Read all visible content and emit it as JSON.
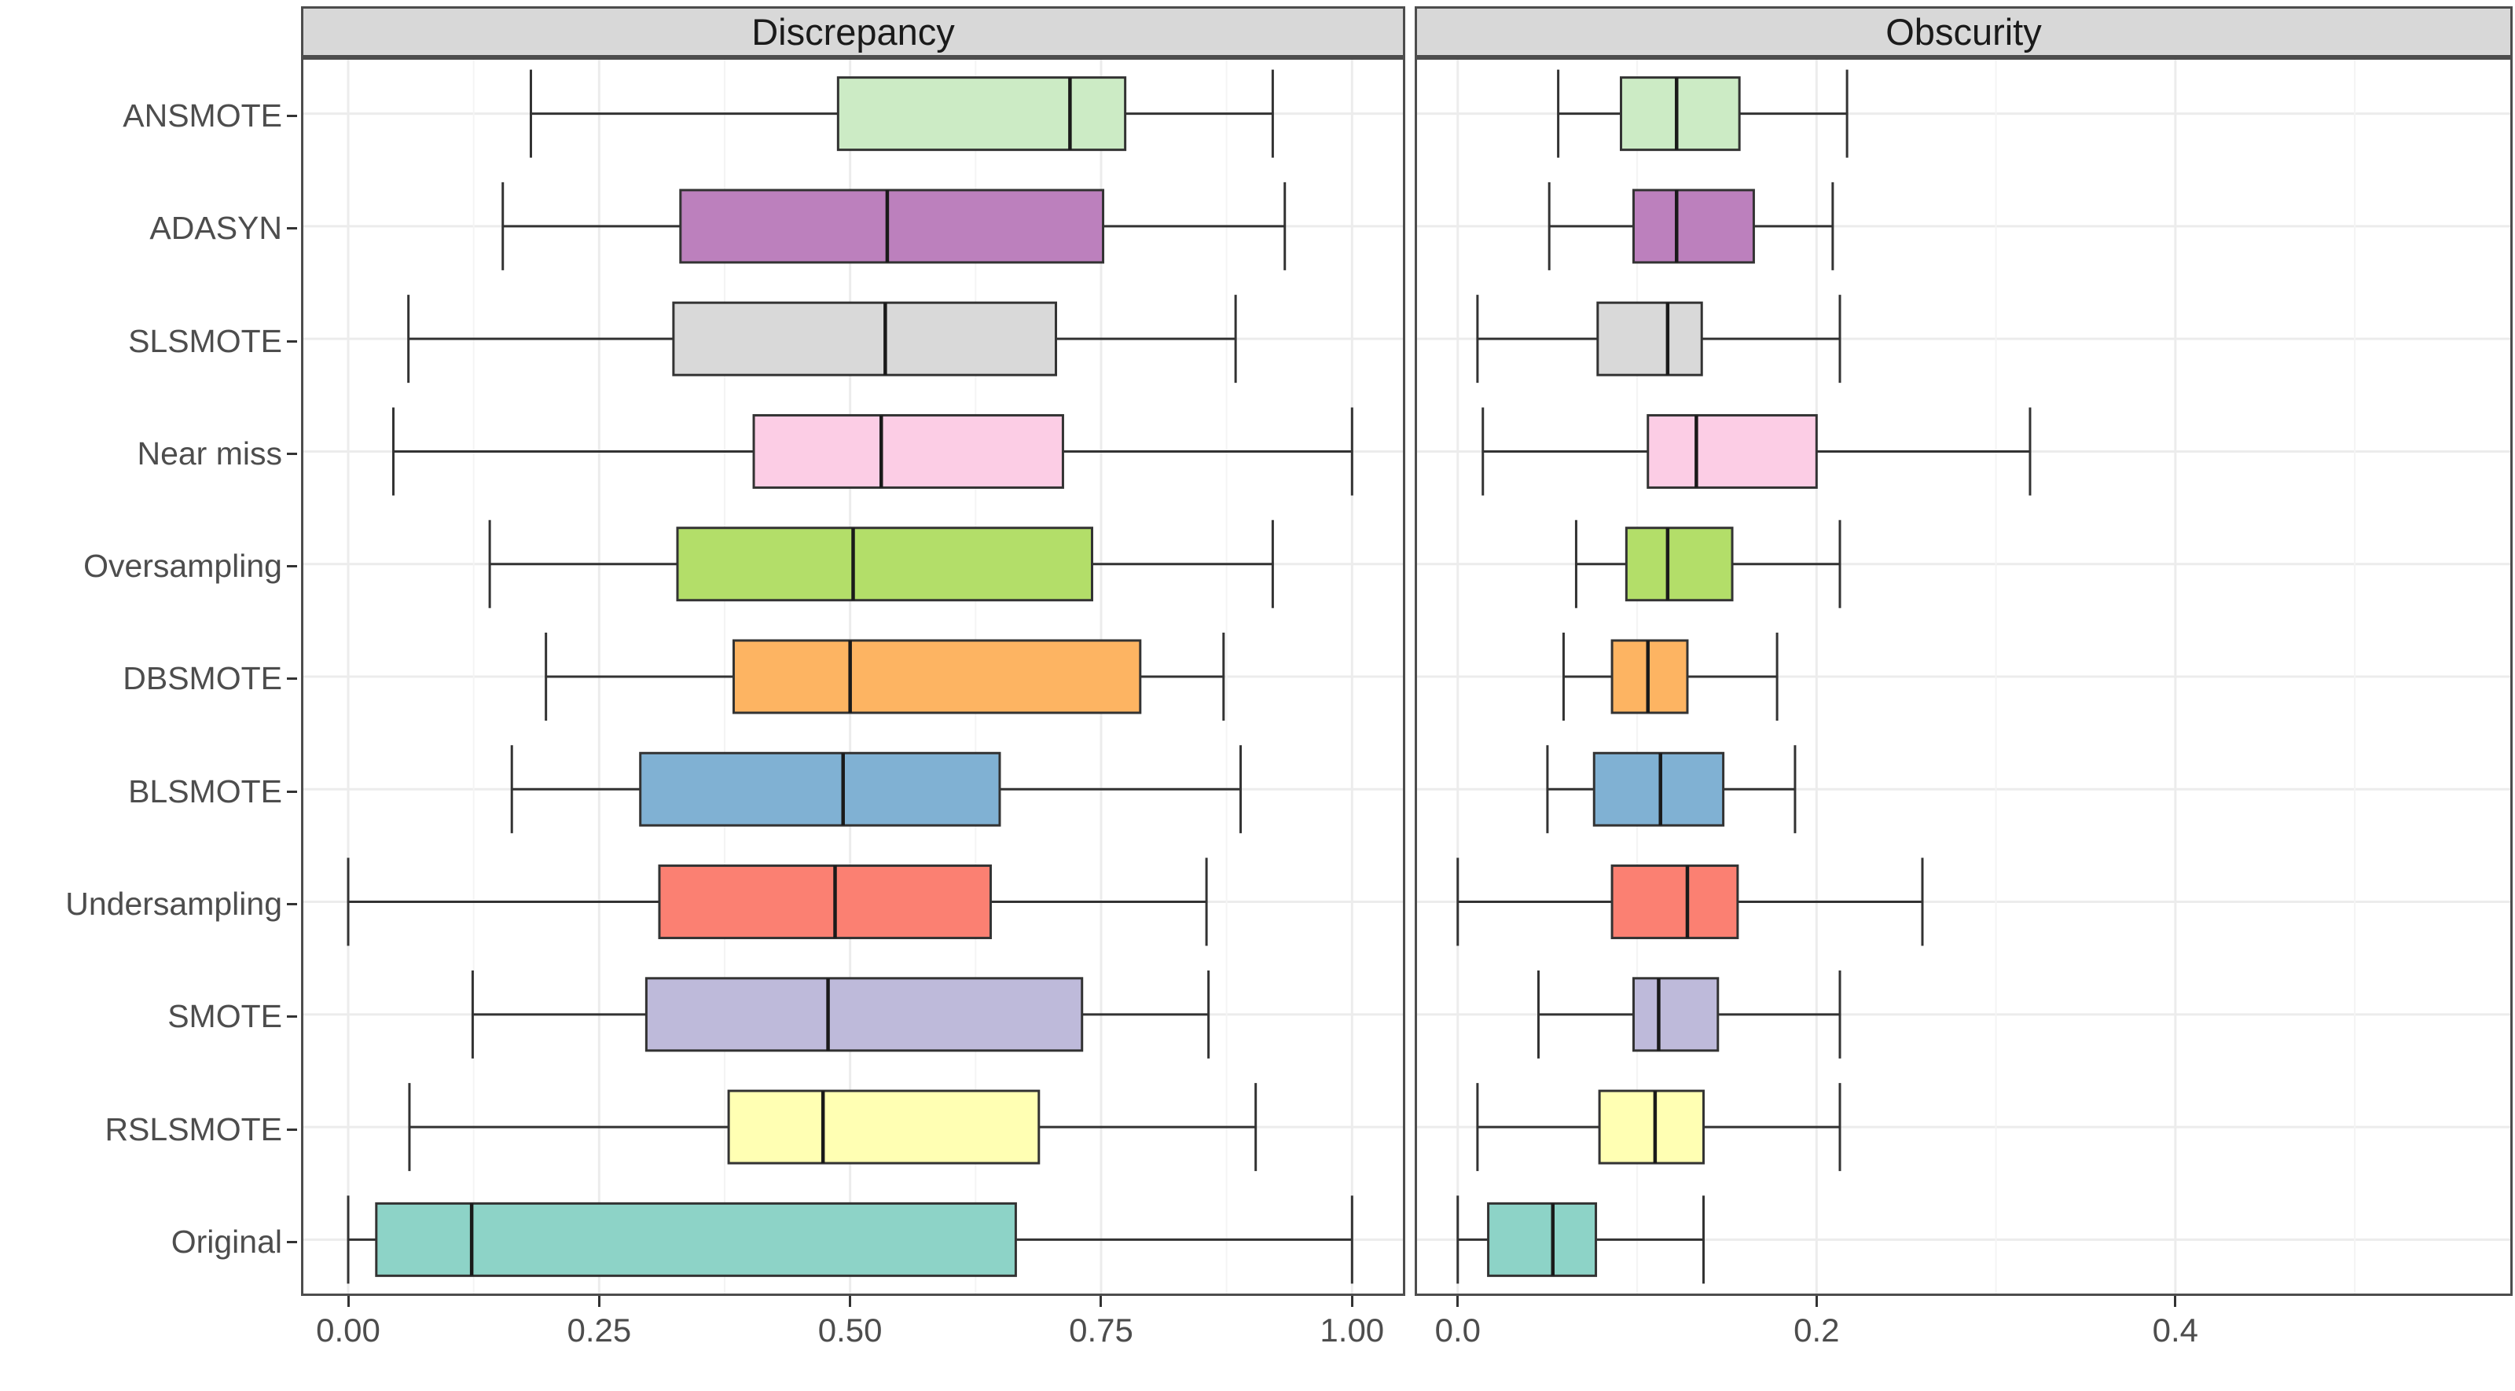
{
  "chart_data": {
    "type": "boxplot",
    "orientation": "horizontal",
    "grid": "on",
    "categories_top_to_bottom": [
      "ANSMOTE",
      "ADASYN",
      "SLSMOTE",
      "Near miss",
      "Oversampling",
      "DBSMOTE",
      "BLSMOTE",
      "Undersampling",
      "SMOTE",
      "RSLSMOTE",
      "Original"
    ],
    "category_colors": {
      "ANSMOTE": "#CCEBC5",
      "ADASYN": "#BC80BD",
      "SLSMOTE": "#D9D9D9",
      "Near miss": "#FCCDE5",
      "Oversampling": "#B3DE69",
      "DBSMOTE": "#FDB462",
      "BLSMOTE": "#80B1D3",
      "Undersampling": "#FB8072",
      "SMOTE": "#BEBADA",
      "RSLSMOTE": "#FFFFB3",
      "Original": "#8DD3C7"
    },
    "panels": [
      {
        "title": "Discrepancy",
        "xlim": [
          -0.047,
          1.053
        ],
        "x_ticks": [
          {
            "value": 0.0,
            "label": "0.00"
          },
          {
            "value": 0.25,
            "label": "0.25"
          },
          {
            "value": 0.5,
            "label": "0.50"
          },
          {
            "value": 0.75,
            "label": "0.75"
          },
          {
            "value": 1.0,
            "label": "1.00"
          }
        ],
        "x_minor_ticks": [
          0.125,
          0.375,
          0.625,
          0.875
        ],
        "boxes": [
          {
            "category": "ANSMOTE",
            "whisker_min": 0.182,
            "q1": 0.488,
            "median": 0.719,
            "q3": 0.774,
            "whisker_max": 0.921
          },
          {
            "category": "ADASYN",
            "whisker_min": 0.154,
            "q1": 0.331,
            "median": 0.537,
            "q3": 0.752,
            "whisker_max": 0.933
          },
          {
            "category": "SLSMOTE",
            "whisker_min": 0.06,
            "q1": 0.324,
            "median": 0.535,
            "q3": 0.705,
            "whisker_max": 0.884
          },
          {
            "category": "Near miss",
            "whisker_min": 0.045,
            "q1": 0.404,
            "median": 0.531,
            "q3": 0.712,
            "whisker_max": 1.0
          },
          {
            "category": "Oversampling",
            "whisker_min": 0.141,
            "q1": 0.328,
            "median": 0.503,
            "q3": 0.741,
            "whisker_max": 0.921
          },
          {
            "category": "DBSMOTE",
            "whisker_min": 0.197,
            "q1": 0.384,
            "median": 0.5,
            "q3": 0.789,
            "whisker_max": 0.872
          },
          {
            "category": "BLSMOTE",
            "whisker_min": 0.163,
            "q1": 0.291,
            "median": 0.493,
            "q3": 0.649,
            "whisker_max": 0.889
          },
          {
            "category": "Undersampling",
            "whisker_min": 0.0,
            "q1": 0.31,
            "median": 0.485,
            "q3": 0.64,
            "whisker_max": 0.855
          },
          {
            "category": "SMOTE",
            "whisker_min": 0.124,
            "q1": 0.297,
            "median": 0.478,
            "q3": 0.731,
            "whisker_max": 0.857
          },
          {
            "category": "RSLSMOTE",
            "whisker_min": 0.061,
            "q1": 0.379,
            "median": 0.473,
            "q3": 0.688,
            "whisker_max": 0.904
          },
          {
            "category": "Original",
            "whisker_min": 0.0,
            "q1": 0.028,
            "median": 0.123,
            "q3": 0.665,
            "whisker_max": 1.0
          }
        ]
      },
      {
        "title": "Obscurity",
        "xlim": [
          -0.024,
          0.588
        ],
        "x_ticks": [
          {
            "value": 0.0,
            "label": "0.0"
          },
          {
            "value": 0.2,
            "label": "0.2"
          },
          {
            "value": 0.4,
            "label": "0.4"
          }
        ],
        "x_minor_ticks": [
          0.1,
          0.3,
          0.5
        ],
        "boxes": [
          {
            "category": "ANSMOTE",
            "whisker_min": 0.056,
            "q1": 0.091,
            "median": 0.122,
            "q3": 0.157,
            "whisker_max": 0.217
          },
          {
            "category": "ADASYN",
            "whisker_min": 0.051,
            "q1": 0.098,
            "median": 0.122,
            "q3": 0.165,
            "whisker_max": 0.209
          },
          {
            "category": "SLSMOTE",
            "whisker_min": 0.011,
            "q1": 0.078,
            "median": 0.117,
            "q3": 0.136,
            "whisker_max": 0.213
          },
          {
            "category": "Near miss",
            "whisker_min": 0.014,
            "q1": 0.106,
            "median": 0.133,
            "q3": 0.2,
            "whisker_max": 0.319
          },
          {
            "category": "Oversampling",
            "whisker_min": 0.066,
            "q1": 0.094,
            "median": 0.117,
            "q3": 0.153,
            "whisker_max": 0.213
          },
          {
            "category": "DBSMOTE",
            "whisker_min": 0.059,
            "q1": 0.086,
            "median": 0.106,
            "q3": 0.128,
            "whisker_max": 0.178
          },
          {
            "category": "BLSMOTE",
            "whisker_min": 0.05,
            "q1": 0.076,
            "median": 0.113,
            "q3": 0.148,
            "whisker_max": 0.188
          },
          {
            "category": "Undersampling",
            "whisker_min": 0.0,
            "q1": 0.086,
            "median": 0.128,
            "q3": 0.156,
            "whisker_max": 0.259
          },
          {
            "category": "SMOTE",
            "whisker_min": 0.045,
            "q1": 0.098,
            "median": 0.112,
            "q3": 0.145,
            "whisker_max": 0.213
          },
          {
            "category": "RSLSMOTE",
            "whisker_min": 0.011,
            "q1": 0.079,
            "median": 0.11,
            "q3": 0.137,
            "whisker_max": 0.213
          },
          {
            "category": "Original",
            "whisker_min": 0.0,
            "q1": 0.017,
            "median": 0.053,
            "q3": 0.077,
            "whisker_max": 0.137
          }
        ]
      }
    ]
  },
  "style": {
    "strip_background": "#d8d8d8",
    "strip_text_color": "#1a1a1a",
    "panel_border_color": "#4d4d4d",
    "axis_text_color": "#4d4d4d",
    "tick_mark_color": "#333333",
    "grid_major_color": "#ececec",
    "grid_minor_color": "#f4f4f4",
    "box_edge_color": "#333333",
    "median_line_color": "#1a1a1a"
  }
}
